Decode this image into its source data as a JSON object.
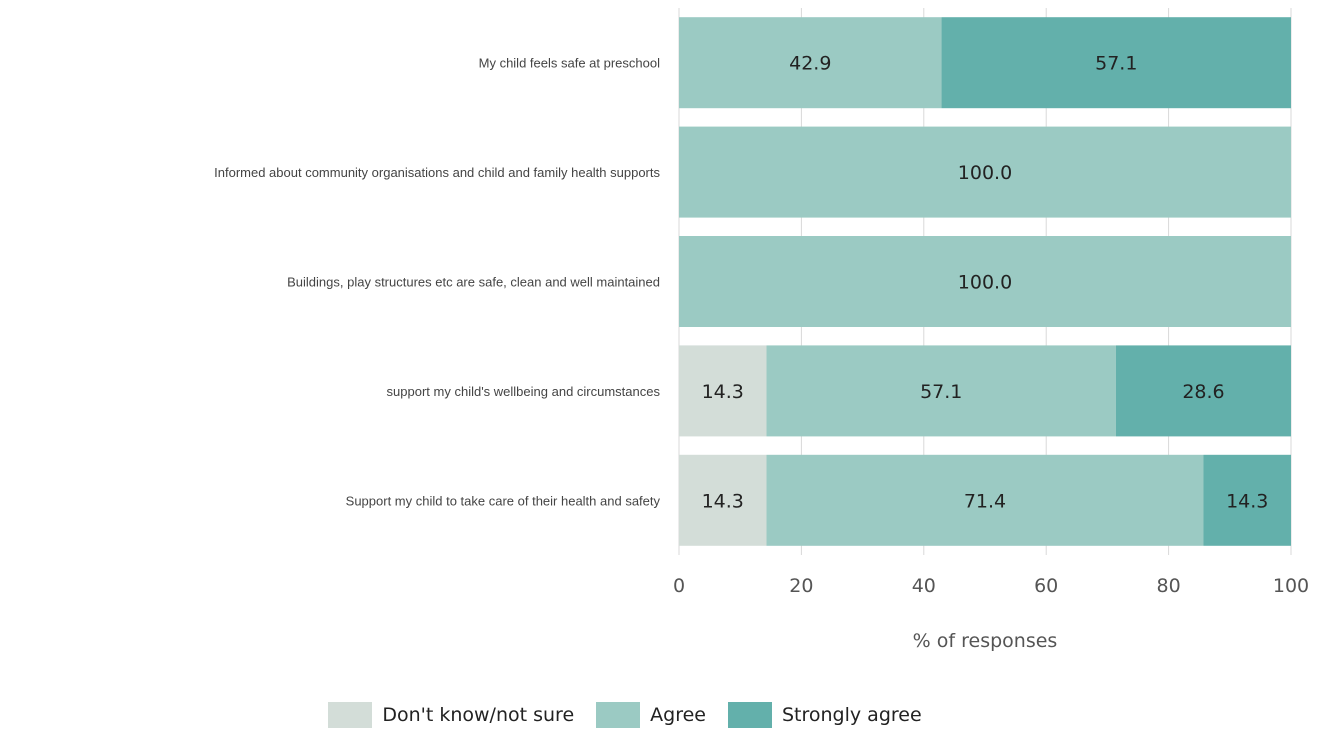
{
  "chart_data": {
    "type": "bar",
    "orientation": "horizontal",
    "stacked": true,
    "categories": [
      "My child feels safe at preschool",
      "Informed about community organisations and child and family health supports",
      "Buildings, play structures etc are safe, clean and well maintained",
      "support my child's wellbeing and circumstances",
      "Support my child to take care of their health and safety"
    ],
    "series": [
      {
        "name": "Don't know/not sure",
        "color": "#d3ddd8",
        "values": [
          0,
          0,
          0,
          14.3,
          14.3
        ]
      },
      {
        "name": "Agree",
        "color": "#9bcac3",
        "values": [
          42.9,
          100.0,
          100.0,
          57.1,
          71.4
        ]
      },
      {
        "name": "Strongly agree",
        "color": "#63b0ab",
        "values": [
          57.1,
          0,
          0,
          28.6,
          14.3
        ]
      }
    ],
    "xlabel": "% of responses",
    "ylabel": "",
    "xlim": [
      0,
      100
    ],
    "xticks": [
      0,
      20,
      40,
      60,
      80,
      100
    ],
    "grid": "vertical",
    "legend_position": "bottom"
  }
}
